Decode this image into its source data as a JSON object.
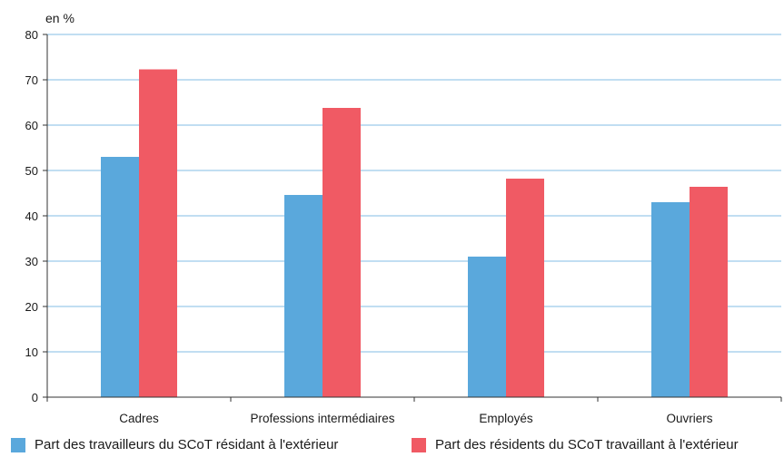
{
  "chart_data": {
    "type": "bar",
    "unit_label": "en %",
    "categories": [
      "Cadres",
      "Professions intermédiaires",
      "Employés",
      "Ouvriers"
    ],
    "series": [
      {
        "name": "Part des travailleurs du SCoT résidant à l'extérieur",
        "values": [
          53,
          44.6,
          31,
          43
        ],
        "color": "#5aa8dc"
      },
      {
        "name": "Part des résidents du SCoT travaillant à l'extérieur",
        "values": [
          72.3,
          63.8,
          48.2,
          46.4
        ],
        "color": "#f05a64"
      }
    ],
    "ylim": [
      0,
      80
    ],
    "yticks": [
      0,
      10,
      20,
      30,
      40,
      50,
      60,
      70,
      80
    ],
    "grid": true,
    "legend_position": "bottom"
  }
}
